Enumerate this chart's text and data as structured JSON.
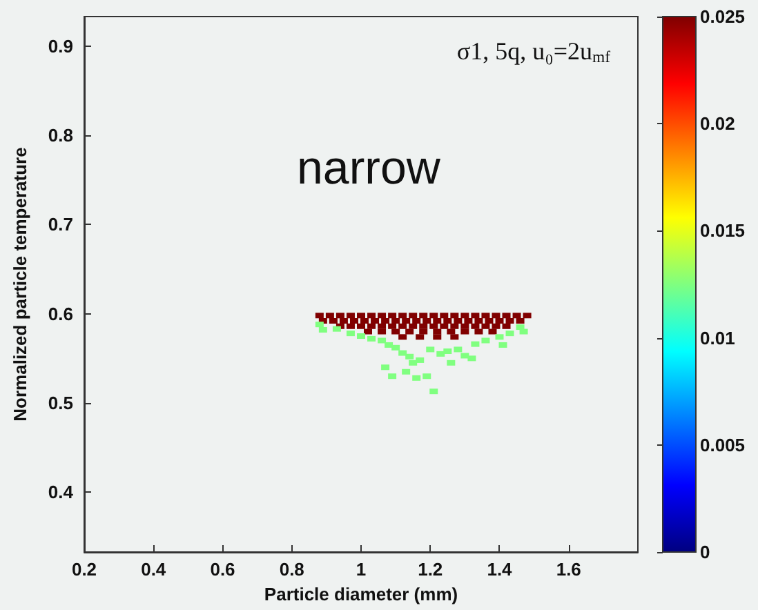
{
  "chart_data": {
    "type": "scatter",
    "xlabel": "Particle diameter (mm)",
    "ylabel": "Normalized particle temperature",
    "annotations": [
      "σ1, 5q, u₀=2u$_{mf}$",
      "narrow"
    ],
    "x": [
      0.88,
      0.91,
      0.94,
      0.97,
      1.0,
      1.03,
      1.06,
      1.09,
      1.12,
      1.15,
      1.18,
      1.21,
      1.24,
      1.27,
      1.3,
      1.33,
      1.36,
      1.39,
      1.42,
      1.45,
      1.48,
      0.89,
      0.92,
      0.95,
      0.98,
      1.01,
      1.04,
      1.07,
      1.1,
      1.13,
      1.16,
      1.19,
      1.22,
      1.25,
      1.28,
      1.31,
      1.34,
      1.37,
      1.4,
      1.43,
      1.46,
      0.94,
      0.97,
      1.0,
      1.03,
      1.06,
      1.09,
      1.12,
      1.15,
      1.18,
      1.21,
      1.24,
      1.27,
      1.3,
      1.33,
      1.36,
      1.39,
      1.42,
      1.02,
      1.06,
      1.1,
      1.14,
      1.18,
      1.22,
      1.26,
      1.3,
      1.34,
      1.38,
      1.12,
      1.17,
      1.22,
      1.27,
      0.88,
      0.89,
      0.93,
      0.97,
      1.0,
      1.03,
      1.06,
      1.08,
      1.1,
      1.12,
      1.14,
      1.15,
      1.17,
      1.2,
      1.23,
      1.25,
      1.28,
      1.3,
      1.33,
      1.36,
      1.4,
      1.43,
      1.46,
      1.47,
      1.09,
      1.13,
      1.16,
      1.19,
      1.21,
      1.07,
      1.26,
      1.32,
      1.41
    ],
    "values": [
      0.598,
      0.598,
      0.598,
      0.598,
      0.598,
      0.598,
      0.598,
      0.598,
      0.598,
      0.598,
      0.598,
      0.598,
      0.598,
      0.598,
      0.598,
      0.598,
      0.598,
      0.598,
      0.598,
      0.598,
      0.598,
      0.592,
      0.592,
      0.592,
      0.592,
      0.592,
      0.592,
      0.592,
      0.592,
      0.592,
      0.592,
      0.592,
      0.592,
      0.592,
      0.592,
      0.592,
      0.592,
      0.592,
      0.592,
      0.592,
      0.592,
      0.586,
      0.586,
      0.586,
      0.586,
      0.586,
      0.586,
      0.586,
      0.586,
      0.586,
      0.586,
      0.586,
      0.586,
      0.586,
      0.586,
      0.586,
      0.586,
      0.586,
      0.58,
      0.58,
      0.58,
      0.58,
      0.58,
      0.58,
      0.58,
      0.58,
      0.58,
      0.58,
      0.574,
      0.574,
      0.574,
      0.574,
      0.588,
      0.582,
      0.583,
      0.578,
      0.575,
      0.572,
      0.57,
      0.565,
      0.562,
      0.556,
      0.552,
      0.545,
      0.548,
      0.56,
      0.555,
      0.558,
      0.56,
      0.553,
      0.566,
      0.57,
      0.574,
      0.578,
      0.585,
      0.58,
      0.53,
      0.535,
      0.528,
      0.53,
      0.513,
      0.54,
      0.545,
      0.55,
      0.565
    ],
    "cvalues": [
      0.025,
      0.025,
      0.025,
      0.025,
      0.025,
      0.025,
      0.025,
      0.025,
      0.025,
      0.025,
      0.025,
      0.025,
      0.025,
      0.025,
      0.025,
      0.025,
      0.025,
      0.025,
      0.025,
      0.025,
      0.025,
      0.025,
      0.025,
      0.025,
      0.025,
      0.025,
      0.025,
      0.025,
      0.025,
      0.025,
      0.025,
      0.025,
      0.025,
      0.025,
      0.025,
      0.025,
      0.025,
      0.025,
      0.025,
      0.025,
      0.025,
      0.025,
      0.025,
      0.025,
      0.025,
      0.025,
      0.025,
      0.025,
      0.025,
      0.025,
      0.025,
      0.025,
      0.025,
      0.025,
      0.025,
      0.025,
      0.025,
      0.025,
      0.025,
      0.025,
      0.025,
      0.025,
      0.025,
      0.025,
      0.025,
      0.025,
      0.025,
      0.025,
      0.025,
      0.025,
      0.025,
      0.025,
      0.0125,
      0.0125,
      0.0125,
      0.0125,
      0.0125,
      0.0125,
      0.0125,
      0.0125,
      0.0125,
      0.0125,
      0.0125,
      0.0125,
      0.0125,
      0.0125,
      0.0125,
      0.0125,
      0.0125,
      0.0125,
      0.0125,
      0.0125,
      0.0125,
      0.0125,
      0.0125,
      0.0125,
      0.0125,
      0.0125,
      0.0125,
      0.0125,
      0.0125,
      0.0125,
      0.0125,
      0.0125,
      0.0125
    ],
    "marker": "square",
    "xlim": [
      0.2,
      1.8
    ],
    "xticks": [
      0.2,
      0.4,
      0.6,
      0.8,
      1,
      1.2,
      1.4,
      1.6
    ],
    "ylim": [
      0.333,
      0.933
    ],
    "yticks": [
      0.4,
      0.5,
      0.6,
      0.7,
      0.8,
      0.9
    ],
    "clim": [
      0,
      0.025
    ],
    "cticks": [
      0,
      0.005,
      0.01,
      0.015,
      0.02,
      0.025
    ],
    "grid": false
  }
}
